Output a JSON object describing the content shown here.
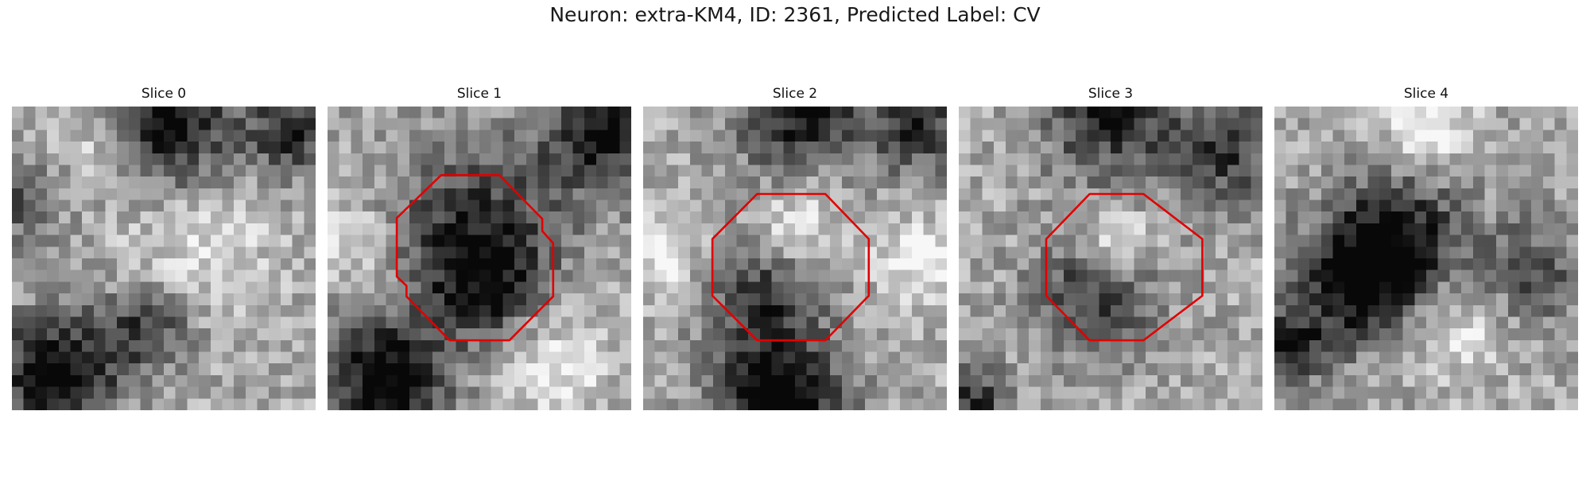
{
  "figure": {
    "title": "Neuron: extra-KM4, ID: 2361, Predicted Label: CV",
    "outline_color": "#e00000",
    "colormap": "grayscale",
    "panels": [
      {
        "title": "Slice 0",
        "has_outline": false
      },
      {
        "title": "Slice 1",
        "has_outline": true
      },
      {
        "title": "Slice 2",
        "has_outline": true
      },
      {
        "title": "Slice 3",
        "has_outline": true
      },
      {
        "title": "Slice 4",
        "has_outline": false
      }
    ]
  }
}
